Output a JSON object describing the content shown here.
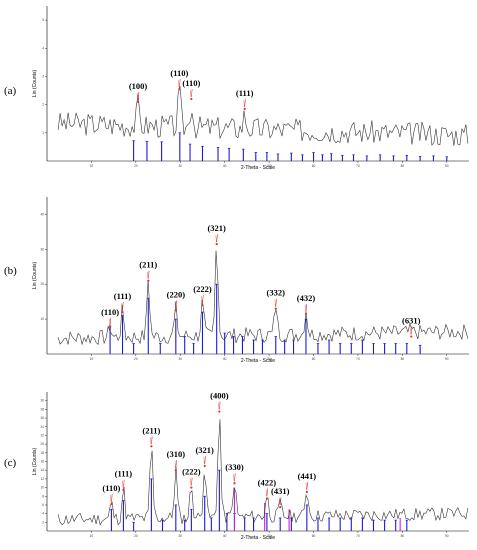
{
  "chart_data": [
    {
      "type": "line",
      "panel": "(a)",
      "xlabel": "2-Theta - Scale",
      "ylabel": "Lin (Counts)",
      "xlim": [
        0,
        95
      ],
      "ylim": [
        0,
        5.5
      ],
      "xticks": [
        "10",
        "20",
        "30",
        "40",
        "50",
        "60",
        "70",
        "80",
        "90"
      ],
      "yticks": [
        "1",
        "2",
        "3",
        "4",
        "5"
      ],
      "noise": {
        "base": 1.35,
        "slope": -0.0045,
        "amp": 0.42,
        "seed": 3
      },
      "peaks": [
        {
          "label": "(100)",
          "x": 20.5,
          "y": 2.1
        },
        {
          "label": "(110)",
          "x": 29.8,
          "y": 2.55
        },
        {
          "label": "(110)",
          "x": 32.5,
          "y": 2.2
        },
        {
          "label": "(111)",
          "x": 44.5,
          "y": 1.85
        }
      ],
      "ref_lines": [
        {
          "x": 19.5,
          "h": 0.72
        },
        {
          "x": 22.5,
          "h": 0.7
        },
        {
          "x": 25.8,
          "h": 0.68
        },
        {
          "x": 29.9,
          "h": 1.0
        },
        {
          "x": 32.2,
          "h": 0.6
        },
        {
          "x": 35.0,
          "h": 0.52
        },
        {
          "x": 38.5,
          "h": 0.48
        },
        {
          "x": 41.0,
          "h": 0.45
        },
        {
          "x": 44.2,
          "h": 0.42
        },
        {
          "x": 47.0,
          "h": 0.3
        },
        {
          "x": 49.5,
          "h": 0.3
        },
        {
          "x": 52.0,
          "h": 0.25
        },
        {
          "x": 55.0,
          "h": 0.28
        },
        {
          "x": 57.5,
          "h": 0.22
        },
        {
          "x": 60.0,
          "h": 0.3
        },
        {
          "x": 62.0,
          "h": 0.22
        },
        {
          "x": 64.0,
          "h": 0.26
        },
        {
          "x": 66.5,
          "h": 0.2
        },
        {
          "x": 69.0,
          "h": 0.22
        },
        {
          "x": 72.0,
          "h": 0.18
        },
        {
          "x": 75.0,
          "h": 0.22
        },
        {
          "x": 78.0,
          "h": 0.18
        },
        {
          "x": 81.0,
          "h": 0.2
        },
        {
          "x": 84.0,
          "h": 0.16
        },
        {
          "x": 87.0,
          "h": 0.18
        },
        {
          "x": 90.0,
          "h": 0.15
        }
      ],
      "magenta_lines": []
    },
    {
      "type": "line",
      "panel": "(b)",
      "xlabel": "2-Theta - Scale",
      "ylabel": "Lin (Counts)",
      "xlim": [
        0,
        95
      ],
      "ylim": [
        0,
        45
      ],
      "xticks": [
        "10",
        "20",
        "30",
        "40",
        "50",
        "60",
        "70",
        "80",
        "90"
      ],
      "yticks": [
        "10",
        "20",
        "30",
        "40"
      ],
      "noise": {
        "base": 4.5,
        "slope": 0.02,
        "amp": 2.2,
        "seed": 7
      },
      "peaks": [
        {
          "label": "(110)",
          "x": 14.2,
          "y": 7.5
        },
        {
          "label": "(111)",
          "x": 17.0,
          "y": 12.0
        },
        {
          "label": "(211)",
          "x": 22.8,
          "y": 21.0
        },
        {
          "label": "(220)",
          "x": 29.0,
          "y": 12.5
        },
        {
          "label": "(222)",
          "x": 35.0,
          "y": 14.0
        },
        {
          "label": "(321)",
          "x": 38.2,
          "y": 31.5
        },
        {
          "label": "(332)",
          "x": 51.5,
          "y": 13.0
        },
        {
          "label": "(432)",
          "x": 58.3,
          "y": 11.5
        },
        {
          "label": "(631)",
          "x": 82.0,
          "y": 5.0
        }
      ],
      "ref_lines": [
        {
          "x": 14.2,
          "h": 8
        },
        {
          "x": 17.0,
          "h": 11
        },
        {
          "x": 19.5,
          "h": 3
        },
        {
          "x": 22.8,
          "h": 16
        },
        {
          "x": 25.5,
          "h": 3
        },
        {
          "x": 29.0,
          "h": 10
        },
        {
          "x": 31.0,
          "h": 5
        },
        {
          "x": 33.0,
          "h": 3
        },
        {
          "x": 35.0,
          "h": 12
        },
        {
          "x": 38.2,
          "h": 20
        },
        {
          "x": 40.0,
          "h": 6
        },
        {
          "x": 42.0,
          "h": 5
        },
        {
          "x": 44.0,
          "h": 5
        },
        {
          "x": 46.5,
          "h": 4
        },
        {
          "x": 48.5,
          "h": 4
        },
        {
          "x": 51.5,
          "h": 5
        },
        {
          "x": 53.5,
          "h": 4
        },
        {
          "x": 55.5,
          "h": 4
        },
        {
          "x": 58.3,
          "h": 10
        },
        {
          "x": 61.0,
          "h": 3
        },
        {
          "x": 63.5,
          "h": 4
        },
        {
          "x": 66.0,
          "h": 3
        },
        {
          "x": 68.5,
          "h": 3
        },
        {
          "x": 71.0,
          "h": 4
        },
        {
          "x": 73.5,
          "h": 3
        },
        {
          "x": 76.0,
          "h": 3
        },
        {
          "x": 78.5,
          "h": 3
        },
        {
          "x": 81.0,
          "h": 3
        },
        {
          "x": 84.0,
          "h": 2.5
        }
      ],
      "magenta_lines": []
    },
    {
      "type": "line",
      "panel": "(c)",
      "xlabel": "2-Theta - Scale",
      "ylabel": "Lin (Counts)",
      "xlim": [
        0,
        95
      ],
      "ylim": [
        0,
        32
      ],
      "xticks": [
        "10",
        "20",
        "30",
        "40",
        "50",
        "60",
        "70",
        "80",
        "90"
      ],
      "yticks": [
        "2",
        "4",
        "6",
        "8",
        "10",
        "12",
        "14",
        "16",
        "18",
        "20",
        "22",
        "24",
        "26",
        "28",
        "30"
      ],
      "noise": {
        "base": 2.6,
        "slope": 0.015,
        "amp": 1.5,
        "seed": 11
      },
      "peaks": [
        {
          "label": "(110)",
          "x": 14.5,
          "y": 6.2
        },
        {
          "label": "(111)",
          "x": 17.2,
          "y": 9.5
        },
        {
          "label": "(211)",
          "x": 23.5,
          "y": 19.5
        },
        {
          "label": "(310)",
          "x": 29.0,
          "y": 14.0
        },
        {
          "label": "(222)",
          "x": 32.5,
          "y": 10.0
        },
        {
          "label": "(321)",
          "x": 35.5,
          "y": 15.0
        },
        {
          "label": "(400)",
          "x": 38.8,
          "y": 27.5
        },
        {
          "label": "(330)",
          "x": 42.2,
          "y": 11.0
        },
        {
          "label": "(422)",
          "x": 49.5,
          "y": 7.5
        },
        {
          "label": "(431)",
          "x": 52.5,
          "y": 5.5
        },
        {
          "label": "(441)",
          "x": 58.5,
          "y": 9.0
        }
      ],
      "ref_lines": [
        {
          "x": 14.5,
          "h": 5
        },
        {
          "x": 17.2,
          "h": 7
        },
        {
          "x": 19.5,
          "h": 2
        },
        {
          "x": 23.5,
          "h": 12
        },
        {
          "x": 26.0,
          "h": 2.5
        },
        {
          "x": 29.0,
          "h": 6
        },
        {
          "x": 31.0,
          "h": 2.5
        },
        {
          "x": 32.5,
          "h": 5
        },
        {
          "x": 35.5,
          "h": 8
        },
        {
          "x": 37.0,
          "h": 3
        },
        {
          "x": 38.8,
          "h": 14
        },
        {
          "x": 40.5,
          "h": 4
        },
        {
          "x": 42.2,
          "h": 4
        },
        {
          "x": 44.5,
          "h": 3
        },
        {
          "x": 46.5,
          "h": 3
        },
        {
          "x": 49.5,
          "h": 4
        },
        {
          "x": 52.5,
          "h": 3
        },
        {
          "x": 55.0,
          "h": 3
        },
        {
          "x": 58.5,
          "h": 6
        },
        {
          "x": 61.0,
          "h": 3
        },
        {
          "x": 63.5,
          "h": 3
        },
        {
          "x": 66.0,
          "h": 3
        },
        {
          "x": 68.5,
          "h": 3
        },
        {
          "x": 71.0,
          "h": 3
        },
        {
          "x": 73.5,
          "h": 2.5
        },
        {
          "x": 76.0,
          "h": 2.5
        },
        {
          "x": 78.5,
          "h": 2.5
        },
        {
          "x": 81.0,
          "h": 2.5
        }
      ],
      "magenta_lines": [
        {
          "x": 42.2,
          "h": 10
        },
        {
          "x": 49.0,
          "h": 6.5
        },
        {
          "x": 54.5,
          "h": 5
        },
        {
          "x": 79.5,
          "h": 3
        }
      ]
    }
  ]
}
